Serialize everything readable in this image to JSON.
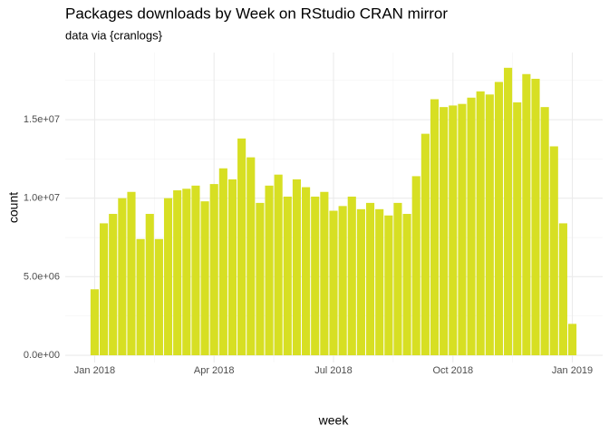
{
  "chart_data": {
    "type": "bar",
    "title": "Packages downloads by Week on RStudio CRAN mirror",
    "subtitle": "data via {cranlogs}",
    "x_label": "week",
    "y_label": "count",
    "color": "#d7df23",
    "grid": true,
    "categories": [
      null,
      null,
      null,
      null,
      null,
      null,
      null,
      null,
      null,
      null,
      null,
      null,
      null,
      null,
      null,
      null,
      null,
      null,
      null,
      null,
      null,
      null,
      null,
      null,
      null,
      null,
      null,
      null,
      null,
      null,
      null,
      null,
      null,
      null,
      null,
      null,
      null,
      null,
      null,
      null,
      null,
      null,
      null,
      null,
      null,
      null,
      null,
      null,
      null,
      null,
      null,
      null,
      null
    ],
    "values": [
      4200000,
      8400000,
      9000000,
      10000000,
      10400000,
      7400000,
      9000000,
      7400000,
      10000000,
      10500000,
      10600000,
      10800000,
      9800000,
      10900000,
      11900000,
      11200000,
      13800000,
      12600000,
      9700000,
      10800000,
      11500000,
      10100000,
      11200000,
      10700000,
      10100000,
      10400000,
      9200000,
      9500000,
      10100000,
      9300000,
      9700000,
      9300000,
      8900000,
      9700000,
      9000000,
      11400000,
      14100000,
      16300000,
      15800000,
      15900000,
      16000000,
      16400000,
      16800000,
      16600000,
      17400000,
      18300000,
      16100000,
      17900000,
      17600000,
      15800000,
      13300000,
      8400000,
      2000000
    ],
    "xlim": [
      -3.2,
      55.3
    ],
    "xticks": [
      {
        "value": 0,
        "label": "Jan 2018"
      },
      {
        "value": 13,
        "label": "Apr 2018"
      },
      {
        "value": 26,
        "label": "Jul 2018"
      },
      {
        "value": 39,
        "label": "Oct 2018"
      },
      {
        "value": 52,
        "label": "Jan 2019"
      }
    ],
    "ylim": [
      -460000,
      19270000
    ],
    "yticks": [
      {
        "value": 0,
        "label": "0.0e+00"
      },
      {
        "value": 5000000,
        "label": "5.0e+06"
      },
      {
        "value": 10000000,
        "label": "1.0e+07"
      },
      {
        "value": 15000000,
        "label": "1.5e+07"
      }
    ]
  }
}
